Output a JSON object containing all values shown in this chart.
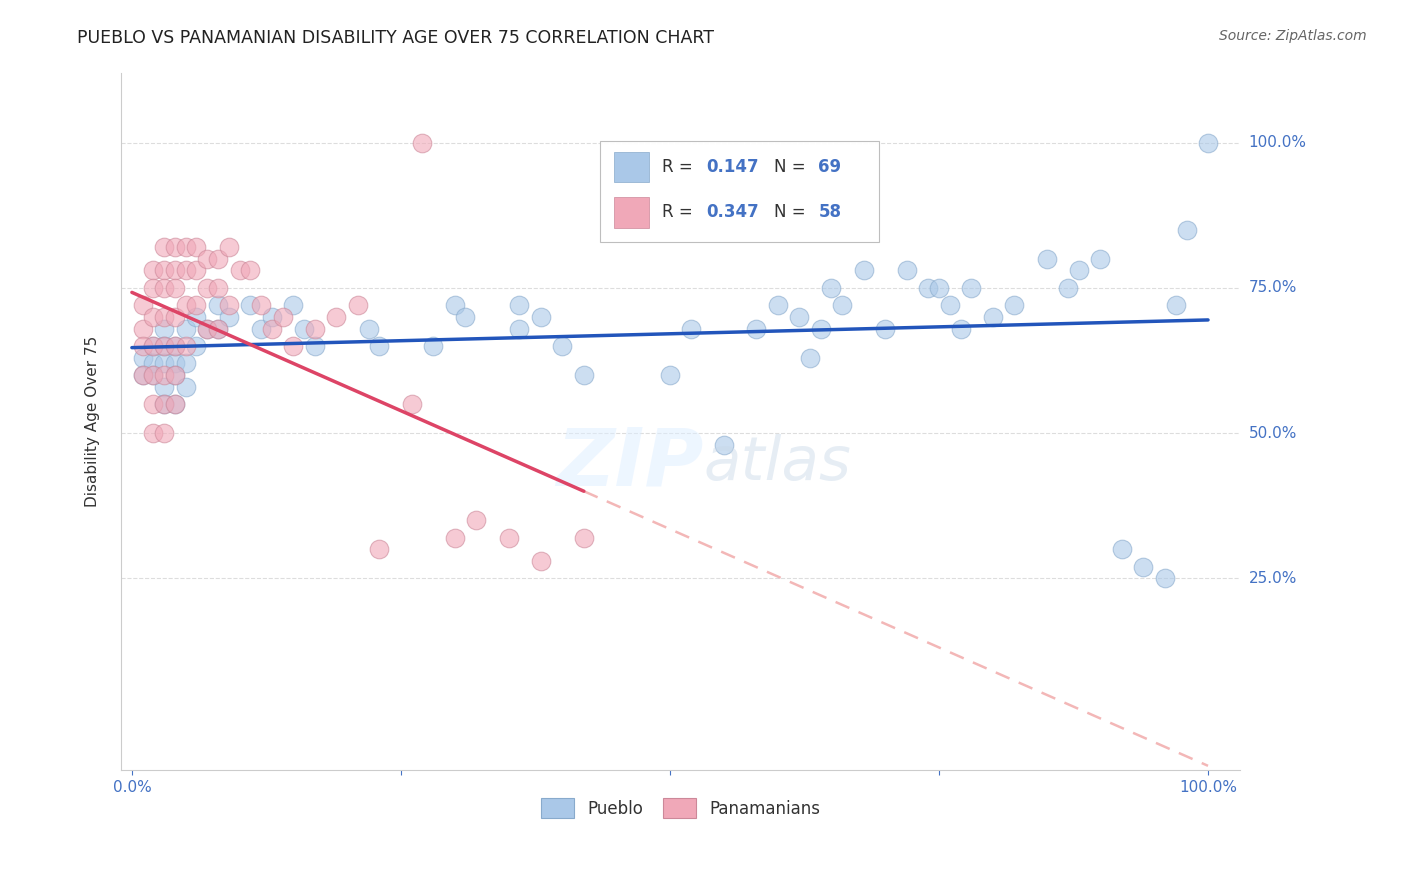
{
  "title": "PUEBLO VS PANAMANIAN DISABILITY AGE OVER 75 CORRELATION CHART",
  "source": "Source: ZipAtlas.com",
  "ylabel": "Disability Age Over 75",
  "legend_r_pueblo": "0.147",
  "legend_n_pueblo": "69",
  "legend_r_panam": "0.347",
  "legend_n_panam": "58",
  "pueblo_color": "#aac8e8",
  "panam_color": "#f0a8b8",
  "pueblo_edge_color": "#88aacc",
  "panam_edge_color": "#cc8899",
  "pueblo_line_color": "#2255bb",
  "panam_line_color": "#dd4466",
  "panam_dash_color": "#ee9999",
  "background_color": "#ffffff",
  "watermark_color": "#ddeeff",
  "grid_color": "#dddddd",
  "title_color": "#222222",
  "source_color": "#666666",
  "axis_label_color": "#4472c4",
  "ylabel_color": "#333333",
  "legend_text_color": "#333333",
  "legend_value_color": "#4472c4",
  "pueblo_x": [
    0.01,
    0.01,
    0.02,
    0.02,
    0.02,
    0.03,
    0.03,
    0.03,
    0.03,
    0.03,
    0.04,
    0.04,
    0.04,
    0.04,
    0.05,
    0.05,
    0.05,
    0.06,
    0.06,
    0.07,
    0.08,
    0.08,
    0.09,
    0.11,
    0.12,
    0.13,
    0.15,
    0.16,
    0.17,
    0.22,
    0.23,
    0.28,
    0.3,
    0.31,
    0.36,
    0.36,
    0.38,
    0.4,
    0.42,
    0.5,
    0.52,
    0.55,
    0.58,
    0.6,
    0.62,
    0.63,
    0.64,
    0.65,
    0.66,
    0.68,
    0.7,
    0.72,
    0.74,
    0.75,
    0.76,
    0.77,
    0.78,
    0.8,
    0.82,
    0.85,
    0.87,
    0.88,
    0.9,
    0.92,
    0.94,
    0.96,
    0.97,
    0.98,
    1.0
  ],
  "pueblo_y": [
    0.63,
    0.6,
    0.65,
    0.62,
    0.6,
    0.68,
    0.65,
    0.62,
    0.58,
    0.55,
    0.65,
    0.62,
    0.6,
    0.55,
    0.68,
    0.62,
    0.58,
    0.7,
    0.65,
    0.68,
    0.72,
    0.68,
    0.7,
    0.72,
    0.68,
    0.7,
    0.72,
    0.68,
    0.65,
    0.68,
    0.65,
    0.65,
    0.72,
    0.7,
    0.72,
    0.68,
    0.7,
    0.65,
    0.6,
    0.6,
    0.68,
    0.48,
    0.68,
    0.72,
    0.7,
    0.63,
    0.68,
    0.75,
    0.72,
    0.78,
    0.68,
    0.78,
    0.75,
    0.75,
    0.72,
    0.68,
    0.75,
    0.7,
    0.72,
    0.8,
    0.75,
    0.78,
    0.8,
    0.3,
    0.27,
    0.25,
    0.72,
    0.85,
    1.0
  ],
  "panam_x": [
    0.01,
    0.01,
    0.01,
    0.01,
    0.02,
    0.02,
    0.02,
    0.02,
    0.02,
    0.02,
    0.02,
    0.03,
    0.03,
    0.03,
    0.03,
    0.03,
    0.03,
    0.03,
    0.03,
    0.04,
    0.04,
    0.04,
    0.04,
    0.04,
    0.04,
    0.04,
    0.05,
    0.05,
    0.05,
    0.05,
    0.06,
    0.06,
    0.06,
    0.07,
    0.07,
    0.07,
    0.08,
    0.08,
    0.08,
    0.09,
    0.09,
    0.1,
    0.11,
    0.12,
    0.13,
    0.14,
    0.15,
    0.17,
    0.19,
    0.21,
    0.23,
    0.26,
    0.27,
    0.3,
    0.32,
    0.35,
    0.38,
    0.42
  ],
  "panam_y": [
    0.72,
    0.68,
    0.65,
    0.6,
    0.78,
    0.75,
    0.7,
    0.65,
    0.6,
    0.55,
    0.5,
    0.82,
    0.78,
    0.75,
    0.7,
    0.65,
    0.6,
    0.55,
    0.5,
    0.82,
    0.78,
    0.75,
    0.7,
    0.65,
    0.6,
    0.55,
    0.82,
    0.78,
    0.72,
    0.65,
    0.82,
    0.78,
    0.72,
    0.8,
    0.75,
    0.68,
    0.8,
    0.75,
    0.68,
    0.82,
    0.72,
    0.78,
    0.78,
    0.72,
    0.68,
    0.7,
    0.65,
    0.68,
    0.7,
    0.72,
    0.3,
    0.55,
    1.0,
    0.32,
    0.35,
    0.32,
    0.28,
    0.32
  ],
  "xlim": [
    -0.01,
    1.03
  ],
  "ylim": [
    -0.08,
    1.12
  ],
  "xticks": [
    0.0,
    0.25,
    0.5,
    0.75,
    1.0
  ],
  "yticks": [
    0.25,
    0.5,
    0.75,
    1.0
  ],
  "ytick_labels": [
    "25.0%",
    "50.0%",
    "75.0%",
    "100.0%"
  ]
}
